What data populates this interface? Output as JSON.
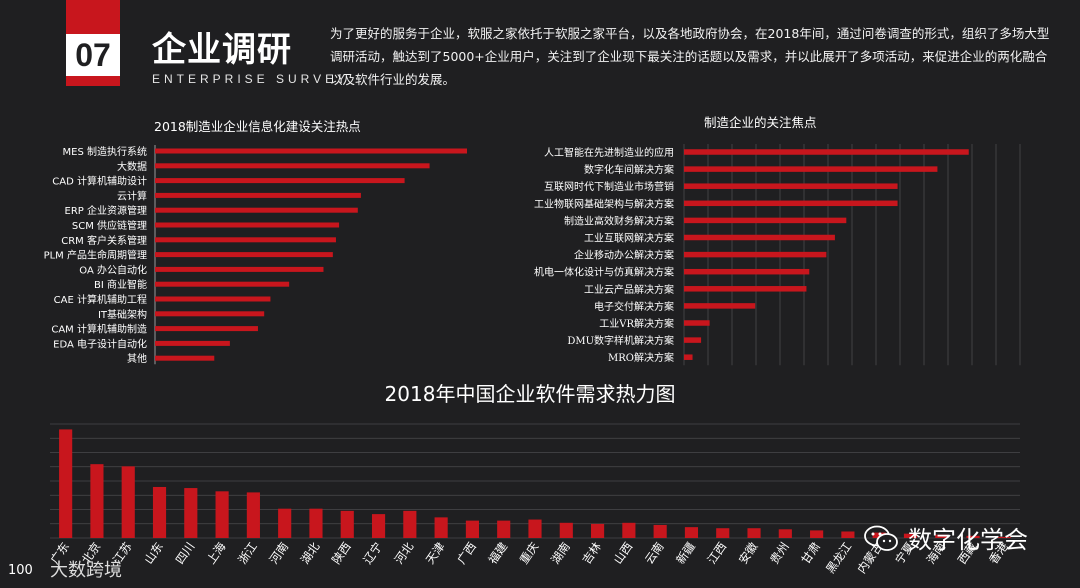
{
  "header": {
    "section_number": "07",
    "title": "企业调研",
    "subtitle": "ENTERPRISE SURVEY",
    "intro": "为了更好的服务于企业，软服之家依托于软服之家平台，以及各地政府协会，在2018年间，通过问卷调查的形式，组织了多场大型调研活动，触达到了5000+企业用户，关注到了企业现下最关注的话题以及需求，并以此展开了多项活动，来促进企业的两化融合以及软件行业的发展。"
  },
  "colors": {
    "bar": "#c8161d",
    "background": "#1f1f21",
    "grid": "#4a4a4c",
    "text": "#ffffff"
  },
  "chart_data": [
    {
      "type": "bar",
      "orientation": "horizontal",
      "title": "2018制造业企业信息化建设关注热点",
      "categories": [
        "MES 制造执行系统",
        "大数据",
        "CAD 计算机辅助设计",
        "云计算",
        "ERP 企业资源管理",
        "SCM 供应链管理",
        "CRM 客户关系管理",
        "PLM 产品生命周期管理",
        "OA 办公自动化",
        "BI 商业智能",
        "CAE 计算机辅助工程",
        "IT基础架构",
        "CAM 计算机辅助制造",
        "EDA 电子设计自动化",
        "其他"
      ],
      "values": [
        100,
        88,
        80,
        66,
        65,
        59,
        58,
        57,
        54,
        43,
        37,
        35,
        33,
        24,
        19
      ],
      "xlim": [
        0,
        100
      ],
      "grid": false
    },
    {
      "type": "bar",
      "orientation": "horizontal",
      "title": "制造企业的关注焦点",
      "categories": [
        "人工智能在先进制造业的应用",
        "数字化车间解决方案",
        "互联网时代下制造业市场营销",
        "工业物联网基础架构与解决方案",
        "制造业高效财务解决方案",
        "工业互联网解决方案",
        "企业移动办公解决方案",
        "机电一体化设计与仿真解决方案",
        "工业云产品解决方案",
        "电子交付解决方案",
        "工业VR解决方案",
        "DMU数字样机解决方案",
        "MRO解决方案"
      ],
      "values": [
        100,
        89,
        75,
        75,
        57,
        53,
        50,
        44,
        43,
        25,
        9,
        6,
        3
      ],
      "xlim": [
        0,
        118
      ],
      "grid": true
    },
    {
      "type": "bar",
      "orientation": "vertical",
      "title": "2018年中国企业软件需求热力图",
      "categories": [
        "广东",
        "北京",
        "江苏",
        "山东",
        "四川",
        "上海",
        "浙江",
        "河南",
        "湖北",
        "陕西",
        "辽宁",
        "河北",
        "天津",
        "广西",
        "福建",
        "重庆",
        "湖南",
        "吉林",
        "山西",
        "云南",
        "新疆",
        "江西",
        "安徽",
        "贵州",
        "甘肃",
        "黑龙江",
        "内蒙古",
        "宁夏",
        "海南",
        "西藏",
        "香港"
      ],
      "values": [
        100,
        68,
        66,
        47,
        46,
        43,
        42,
        27,
        27,
        25,
        22,
        25,
        19,
        16,
        16,
        17,
        14,
        13,
        14,
        12,
        10,
        9,
        9,
        8,
        7,
        6,
        5,
        4,
        3,
        2,
        1
      ],
      "ylim": [
        0,
        105
      ],
      "grid": true
    }
  ],
  "watermark": {
    "text": "数字化学会",
    "icon": "wechat-icon"
  },
  "logo": {
    "text": "大数跨境",
    "icon": "logo-icon"
  }
}
